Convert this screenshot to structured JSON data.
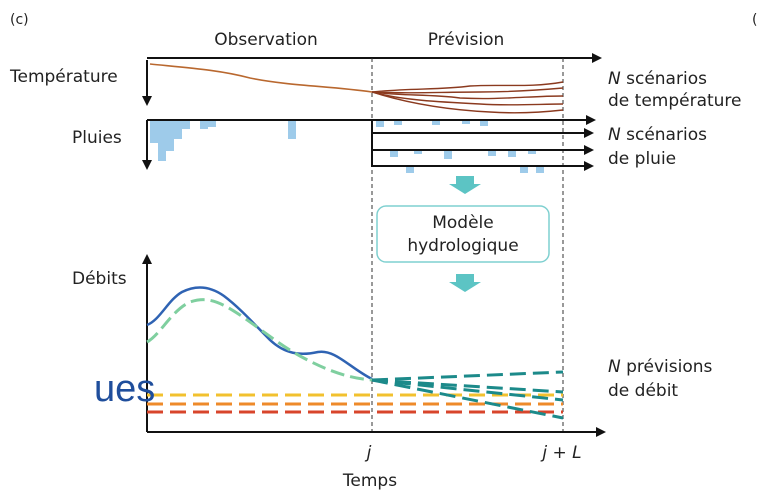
{
  "panel_letter": "(c)",
  "edge_letter": "(",
  "headers": {
    "observation": "Observation",
    "prevision": "Prévision"
  },
  "left_labels": {
    "temperature": "Température",
    "rain": "Pluies",
    "flow": "Débits"
  },
  "right_labels": {
    "temp_line1_n": "N",
    "temp_line1": " scénarios",
    "temp_line2": "de température",
    "rain_line1_n": "N",
    "rain_line1": " scénarios",
    "rain_line2": "de pluie",
    "flow_line1_n": "N",
    "flow_line1": " prévisions",
    "flow_line2": "de débit"
  },
  "model_box": {
    "line1": "Modèle",
    "line2": "hydrologique"
  },
  "x_axis": {
    "label": "Temps",
    "tick_j": "j",
    "tick_jL": "j + L"
  },
  "overlay_text": "ues",
  "colors": {
    "temperature": "#b9682f",
    "temp_scenarios": "#8b3a1f",
    "rain": "#9ecbea",
    "flow_obs": "#2f63b3",
    "flow_sim": "#7fcf9f",
    "flow_forecast": "#1c8a8a",
    "model_arrow": "#5cc4c4",
    "threshold_yellow": "#f2c12e",
    "threshold_orange": "#ee8a2a",
    "threshold_red": "#d8452b"
  }
}
